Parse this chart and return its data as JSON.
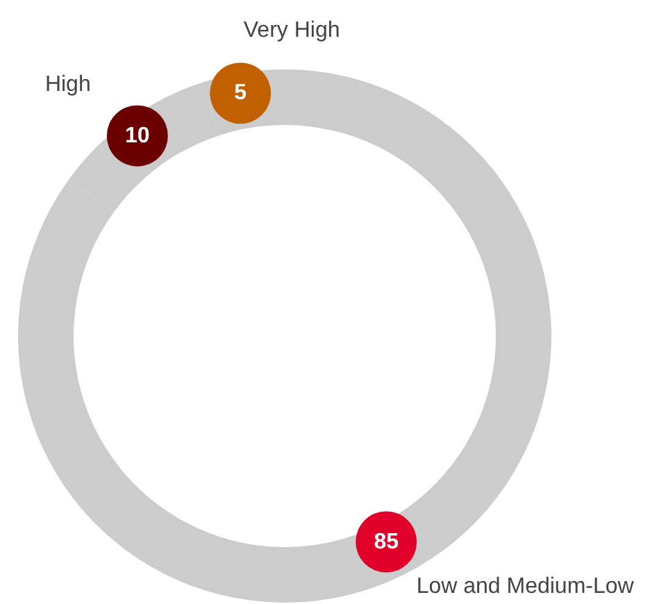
{
  "chart_data": {
    "type": "donut",
    "categories": [
      "Very High",
      "High",
      "Low and Medium-Low"
    ],
    "values": [
      5,
      10,
      85
    ],
    "colors": [
      "#cccccc",
      "#cccccc",
      "#cccccc"
    ],
    "data_labels": true
  }
}
